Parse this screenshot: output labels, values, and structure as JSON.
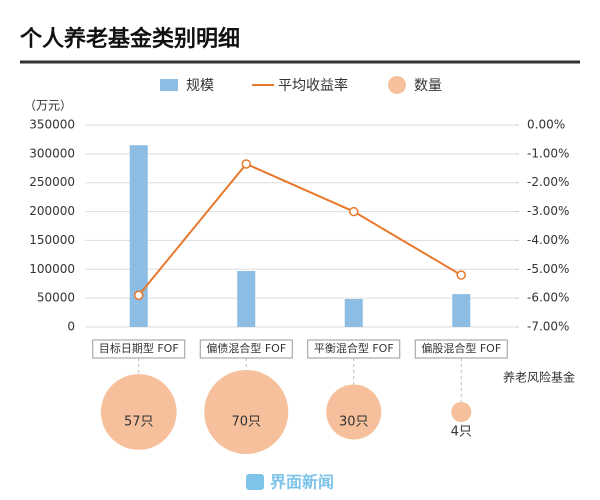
{
  "chart_data": {
    "type": "combo",
    "title": "个人养老基金类别明细",
    "y_label": "（万元）",
    "source": "养老风险基金",
    "watermark": "界面新闻",
    "categories": [
      "目标日期型 FOF",
      "偏债混合型 FOF",
      "平衡混合型 FOF",
      "偏股混合型 FOF"
    ],
    "series": [
      {
        "name": "规模",
        "type": "bar",
        "color": "#8dbde2",
        "values": [
          315000,
          97000,
          48500,
          57000
        ]
      },
      {
        "name": "平均收益率",
        "type": "line",
        "axis": "y2",
        "color": "#e8782c",
        "values": [
          -5.9,
          -1.35,
          -3.0,
          -5.2
        ]
      },
      {
        "name": "数量",
        "type": "bubble",
        "color": "#f6c09c",
        "values": [
          57,
          70,
          30,
          4
        ],
        "value_labels": [
          "57只",
          "70只",
          "30只",
          "4只"
        ]
      }
    ],
    "ylim": [
      0,
      350000
    ],
    "yticks": [
      0,
      50000,
      100000,
      150000,
      200000,
      250000,
      300000,
      350000
    ],
    "y2lim": [
      -7,
      0
    ],
    "y2ticks": [
      {
        "value": 0,
        "label": "0.00%"
      },
      {
        "value": -1,
        "label": "-1.00%"
      },
      {
        "value": -2,
        "label": "-2.00%"
      },
      {
        "value": -3,
        "label": "-3.00%"
      },
      {
        "value": -4,
        "label": "-4.00%"
      },
      {
        "value": -5,
        "label": "-5.00%"
      },
      {
        "value": -6,
        "label": "-6.00%"
      },
      {
        "value": -7,
        "label": "-7.00%"
      }
    ],
    "grid": true
  }
}
